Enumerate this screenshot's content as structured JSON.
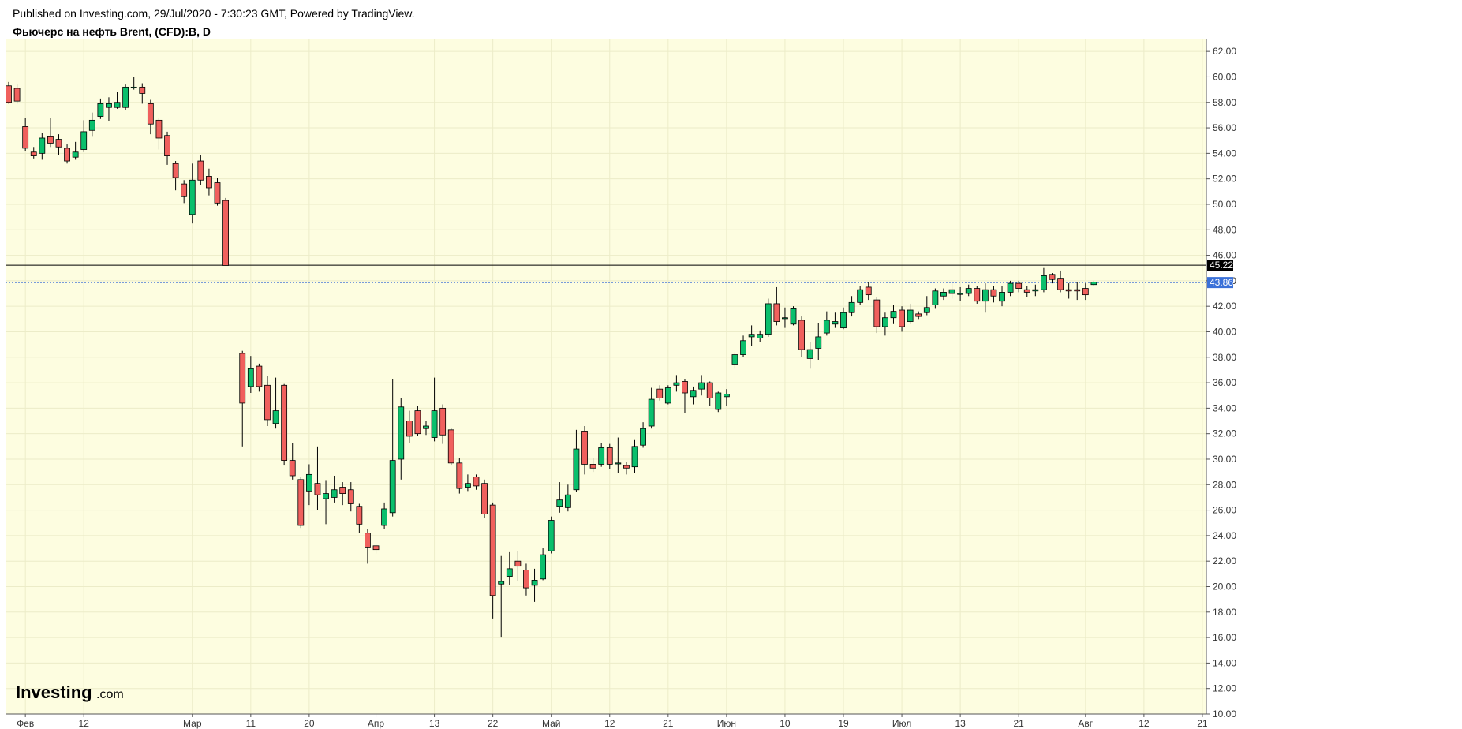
{
  "header": {
    "published": "Published on Investing.com, 29/Jul/2020 - 7:30:23 GMT, Powered by TradingView.",
    "title": "Фьючерс на нефть Brent, (CFD):B, D"
  },
  "logo": {
    "main": "Investing",
    "suffix": ".com"
  },
  "colors": {
    "background": "#fdfde0",
    "grid": "#ececc8",
    "up": "#0abf6c",
    "down": "#f0605d",
    "wick": "#000000",
    "resistance_line": "#000000",
    "current_line": "#2961d6",
    "tag_black": "#000000",
    "tag_blue": "#3a70d8"
  },
  "chart_data": {
    "type": "candlestick",
    "title": "Фьючерс на нефть Brent, (CFD):B, D",
    "ylim": [
      10,
      63
    ],
    "y_ticks": [
      "62.00",
      "60.00",
      "58.00",
      "56.00",
      "54.00",
      "52.00",
      "50.00",
      "48.00",
      "46.00",
      "44.00",
      "42.00",
      "40.00",
      "38.00",
      "36.00",
      "34.00",
      "32.00",
      "30.00",
      "28.00",
      "26.00",
      "24.00",
      "22.00",
      "20.00",
      "18.00",
      "16.00",
      "14.00",
      "12.00",
      "10.00"
    ],
    "x_ticks": [
      {
        "label": "Фев",
        "slot": 2
      },
      {
        "label": "12",
        "slot": 9
      },
      {
        "label": "Мар",
        "slot": 22
      },
      {
        "label": "11",
        "slot": 29
      },
      {
        "label": "20",
        "slot": 36
      },
      {
        "label": "Апр",
        "slot": 44
      },
      {
        "label": "13",
        "slot": 51
      },
      {
        "label": "22",
        "slot": 58
      },
      {
        "label": "Май",
        "slot": 65
      },
      {
        "label": "12",
        "slot": 72
      },
      {
        "label": "21",
        "slot": 79
      },
      {
        "label": "Июн",
        "slot": 86
      },
      {
        "label": "10",
        "slot": 93
      },
      {
        "label": "19",
        "slot": 100
      },
      {
        "label": "Июл",
        "slot": 107
      },
      {
        "label": "13",
        "slot": 114
      },
      {
        "label": "21",
        "slot": 121
      },
      {
        "label": "Авг",
        "slot": 129
      },
      {
        "label": "12",
        "slot": 136
      },
      {
        "label": "21",
        "slot": 143
      }
    ],
    "lines": [
      {
        "name": "last-close-level",
        "value": 45.22,
        "label": "45.22",
        "style": "solid"
      },
      {
        "name": "current-price",
        "value": 43.86,
        "label": "43.86",
        "style": "dotted"
      }
    ],
    "candles": [
      [
        59.3,
        58.0,
        59.6,
        57.9
      ],
      [
        59.1,
        58.1,
        59.4,
        57.9
      ],
      [
        56.1,
        54.4,
        56.8,
        54.2
      ],
      [
        54.1,
        53.8,
        54.5,
        53.6
      ],
      [
        54.0,
        55.2,
        55.6,
        53.5
      ],
      [
        55.3,
        54.8,
        56.8,
        54.5
      ],
      [
        55.1,
        54.5,
        55.5,
        53.9
      ],
      [
        54.4,
        53.4,
        54.7,
        53.2
      ],
      [
        53.7,
        54.1,
        54.9,
        53.5
      ],
      [
        54.3,
        55.7,
        56.6,
        54.1
      ],
      [
        55.8,
        56.6,
        57.2,
        55.3
      ],
      [
        56.9,
        57.9,
        58.3,
        56.7
      ],
      [
        57.6,
        57.9,
        58.4,
        56.5
      ],
      [
        57.6,
        58.0,
        58.8,
        57.5
      ],
      [
        57.6,
        59.2,
        59.4,
        57.4
      ],
      [
        59.2,
        59.2,
        60.0,
        59.0
      ],
      [
        59.2,
        58.7,
        59.5,
        57.9
      ],
      [
        57.9,
        56.3,
        58.2,
        55.5
      ],
      [
        56.6,
        55.2,
        56.8,
        54.3
      ],
      [
        55.4,
        53.8,
        55.7,
        53.1
      ],
      [
        53.2,
        52.1,
        53.4,
        51.1
      ],
      [
        51.6,
        50.6,
        51.9,
        50.1
      ],
      [
        49.2,
        51.9,
        53.2,
        48.5
      ],
      [
        53.4,
        51.9,
        53.9,
        51.5
      ],
      [
        52.2,
        51.3,
        52.8,
        50.7
      ],
      [
        51.7,
        50.1,
        52.1,
        49.9
      ],
      [
        50.3,
        45.2,
        50.5,
        45.2
      ],
      null,
      [
        38.3,
        34.4,
        38.5,
        31.0
      ],
      [
        35.7,
        37.1,
        38.1,
        35.2
      ],
      [
        37.3,
        35.7,
        37.5,
        35.3
      ],
      [
        35.8,
        33.1,
        36.5,
        32.6
      ],
      [
        32.8,
        33.8,
        36.4,
        32.4
      ],
      [
        35.8,
        29.9,
        35.9,
        29.5
      ],
      [
        29.9,
        28.7,
        31.3,
        28.4
      ],
      [
        28.4,
        24.8,
        28.6,
        24.6
      ],
      [
        27.5,
        28.8,
        29.6,
        26.4
      ],
      [
        28.1,
        27.2,
        31.0,
        26.0
      ],
      [
        26.9,
        27.3,
        28.3,
        24.9
      ],
      [
        27.0,
        27.6,
        28.7,
        26.6
      ],
      [
        27.8,
        27.3,
        28.2,
        26.4
      ],
      [
        27.6,
        26.5,
        28.2,
        25.9
      ],
      [
        26.3,
        24.9,
        26.5,
        24.2
      ],
      [
        24.2,
        23.1,
        24.5,
        21.8
      ],
      [
        23.2,
        22.9,
        23.3,
        22.6
      ],
      [
        24.8,
        26.1,
        26.6,
        24.5
      ],
      [
        25.8,
        29.9,
        36.3,
        25.5
      ],
      [
        30.0,
        34.1,
        34.8,
        28.4
      ],
      [
        33.0,
        31.8,
        33.8,
        31.3
      ],
      [
        33.8,
        32.0,
        34.2,
        31.8
      ],
      [
        32.4,
        32.6,
        33.0,
        31.9
      ],
      [
        31.7,
        33.8,
        36.4,
        31.4
      ],
      [
        34.0,
        31.9,
        34.3,
        31.2
      ],
      [
        32.3,
        29.7,
        32.4,
        29.5
      ],
      [
        29.7,
        27.7,
        30.1,
        27.3
      ],
      [
        27.8,
        28.1,
        28.8,
        27.5
      ],
      [
        28.6,
        27.9,
        28.8,
        27.6
      ],
      [
        28.1,
        25.7,
        28.4,
        25.4
      ],
      [
        26.4,
        19.3,
        26.6,
        17.5
      ],
      [
        20.2,
        20.4,
        22.4,
        16.0
      ],
      [
        20.8,
        21.4,
        22.7,
        20.1
      ],
      [
        22.0,
        21.6,
        22.8,
        20.4
      ],
      [
        21.3,
        19.9,
        21.8,
        19.3
      ],
      [
        20.1,
        20.5,
        21.4,
        18.8
      ],
      [
        20.6,
        22.5,
        23.0,
        20.5
      ],
      [
        22.8,
        25.2,
        25.5,
        22.6
      ],
      [
        26.3,
        26.8,
        28.2,
        25.8
      ],
      [
        26.2,
        27.2,
        28.0,
        25.9
      ],
      [
        27.6,
        30.8,
        32.3,
        27.4
      ],
      [
        32.2,
        29.6,
        32.6,
        28.8
      ],
      [
        29.6,
        29.3,
        30.1,
        29.0
      ],
      [
        29.6,
        30.9,
        31.3,
        29.4
      ],
      [
        30.9,
        29.6,
        31.2,
        29.2
      ],
      [
        29.7,
        29.7,
        31.7,
        28.9
      ],
      [
        29.5,
        29.3,
        29.8,
        28.8
      ],
      [
        29.4,
        31.0,
        31.5,
        28.9
      ],
      [
        31.1,
        32.4,
        32.9,
        30.9
      ],
      [
        32.6,
        34.7,
        35.6,
        32.4
      ],
      [
        35.5,
        34.8,
        35.8,
        34.6
      ],
      [
        34.4,
        35.6,
        35.8,
        34.3
      ],
      [
        35.8,
        36.0,
        36.6,
        35.3
      ],
      [
        36.1,
        35.2,
        36.3,
        33.6
      ],
      [
        34.9,
        35.4,
        35.7,
        34.3
      ],
      [
        35.5,
        36.0,
        36.6,
        35.0
      ],
      [
        36.0,
        34.8,
        36.1,
        34.2
      ],
      [
        33.9,
        35.2,
        35.3,
        33.7
      ],
      [
        34.9,
        35.1,
        35.5,
        34.2
      ],
      [
        37.4,
        38.2,
        38.4,
        37.1
      ],
      [
        38.2,
        39.3,
        39.7,
        38.0
      ],
      [
        39.6,
        39.8,
        40.5,
        38.9
      ],
      [
        39.5,
        39.8,
        40.1,
        39.2
      ],
      [
        39.8,
        42.2,
        42.6,
        39.6
      ],
      [
        42.2,
        40.8,
        43.5,
        40.5
      ],
      [
        41.1,
        41.1,
        41.9,
        40.3
      ],
      [
        40.6,
        41.8,
        42.0,
        40.5
      ],
      [
        40.9,
        38.6,
        41.2,
        38.0
      ],
      [
        37.9,
        38.6,
        39.2,
        37.1
      ],
      [
        38.7,
        39.6,
        40.7,
        37.8
      ],
      [
        39.9,
        40.9,
        41.6,
        39.7
      ],
      [
        40.6,
        40.8,
        41.5,
        40.3
      ],
      [
        40.3,
        41.5,
        41.9,
        40.2
      ],
      [
        41.5,
        42.3,
        42.8,
        41.2
      ],
      [
        42.3,
        43.3,
        43.6,
        42.1
      ],
      [
        43.5,
        42.9,
        43.9,
        42.5
      ],
      [
        42.5,
        40.4,
        42.7,
        39.9
      ],
      [
        40.4,
        41.1,
        41.5,
        39.7
      ],
      [
        41.1,
        41.6,
        42.1,
        40.6
      ],
      [
        41.7,
        40.4,
        42.0,
        40.0
      ],
      [
        40.8,
        41.7,
        42.2,
        40.6
      ],
      [
        41.4,
        41.2,
        41.6,
        41.0
      ],
      [
        41.5,
        41.9,
        42.8,
        41.3
      ],
      [
        42.1,
        43.2,
        43.4,
        41.8
      ],
      [
        42.8,
        43.1,
        43.4,
        42.5
      ],
      [
        43.0,
        43.3,
        43.8,
        42.6
      ],
      [
        43.0,
        43.0,
        43.5,
        42.4
      ],
      [
        43.0,
        43.4,
        43.7,
        42.8
      ],
      [
        43.4,
        42.4,
        43.6,
        42.2
      ],
      [
        42.4,
        43.3,
        43.8,
        41.5
      ],
      [
        43.3,
        42.8,
        43.6,
        42.3
      ],
      [
        42.4,
        43.1,
        43.6,
        42.0
      ],
      [
        43.1,
        43.8,
        44.0,
        42.8
      ],
      [
        43.8,
        43.4,
        44.0,
        43.1
      ],
      [
        43.3,
        43.1,
        43.6,
        42.7
      ],
      [
        43.2,
        43.3,
        43.7,
        42.8
      ],
      [
        43.3,
        44.4,
        45.0,
        43.1
      ],
      [
        44.5,
        44.1,
        44.6,
        43.8
      ],
      [
        44.2,
        43.3,
        44.8,
        43.1
      ],
      [
        43.3,
        43.2,
        43.8,
        42.6
      ],
      [
        43.3,
        43.2,
        43.9,
        42.5
      ],
      [
        43.4,
        42.9,
        43.8,
        42.5
      ],
      [
        43.7,
        43.9,
        44.0,
        43.6
      ]
    ]
  }
}
